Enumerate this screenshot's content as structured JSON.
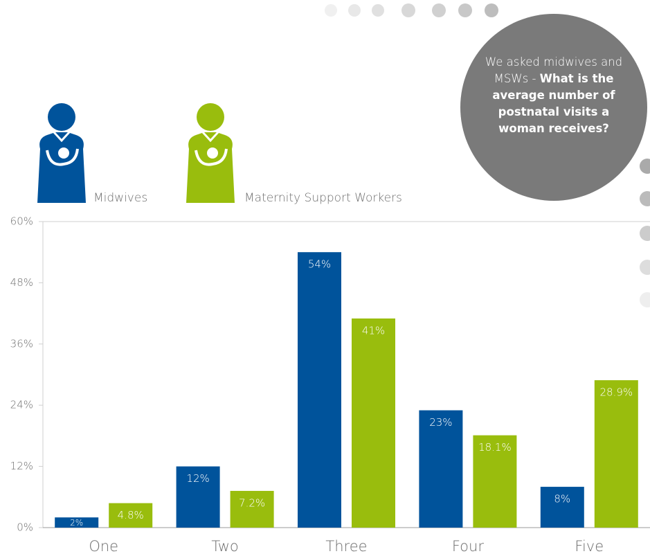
{
  "chart_data": {
    "type": "bar",
    "annotation": {
      "text": "We asked midwives and MSWs - ",
      "bold": "What is the average number of postnatal visits a woman receives?"
    },
    "categories": [
      "One",
      "Two",
      "Three",
      "Four",
      "Five"
    ],
    "series": [
      {
        "name": "Midwives",
        "color": "#00539b",
        "values": [
          2,
          12,
          54,
          23,
          8
        ],
        "value_labels": [
          "2%",
          "12%",
          "54%",
          "23%",
          "8%"
        ]
      },
      {
        "name": "Maternity Support Workers",
        "color": "#99bd0d",
        "values": [
          4.8,
          7.2,
          41,
          18.1,
          28.9
        ],
        "value_labels": [
          "4.8%",
          "7.2%",
          "41%",
          "18.1%",
          "28.9%"
        ]
      }
    ],
    "ylim": [
      0,
      60
    ],
    "yticks": [
      {
        "value": 0,
        "label": "0%"
      },
      {
        "value": 12,
        "label": "12%"
      },
      {
        "value": 24,
        "label": "24%"
      },
      {
        "value": 36,
        "label": "36%"
      },
      {
        "value": 48,
        "label": "48%"
      },
      {
        "value": 60,
        "label": "60%"
      }
    ]
  }
}
